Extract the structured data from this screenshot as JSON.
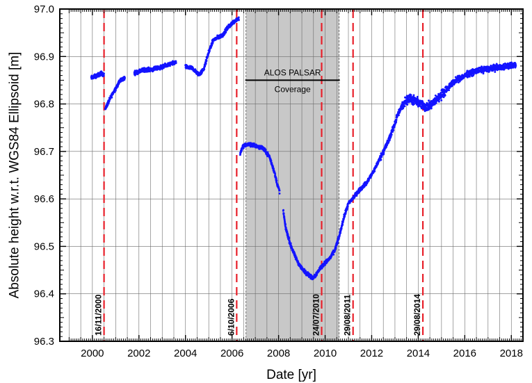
{
  "chart_data": {
    "type": "scatter",
    "title": "",
    "xlabel": "Date [yr]",
    "ylabel": "Absolute height w.r.t. WGS84 Ellipsoid [m]",
    "xlim": [
      1998.6,
      2018.5
    ],
    "ylim": [
      96.3,
      97.0
    ],
    "x_ticks": [
      2000,
      2002,
      2004,
      2006,
      2008,
      2010,
      2012,
      2014,
      2016,
      2018
    ],
    "y_ticks": [
      96.3,
      96.4,
      96.5,
      96.6,
      96.7,
      96.8,
      96.9,
      97.0
    ],
    "x_tick_labels": [
      "2000",
      "2002",
      "2004",
      "2006",
      "2008",
      "2010",
      "2012",
      "2014",
      "2016",
      "2018"
    ],
    "y_tick_labels": [
      "96.3",
      "96.4",
      "96.5",
      "96.6",
      "96.7",
      "96.8",
      "96.9",
      "97.0"
    ],
    "grid": true,
    "colors": {
      "series": "#1414ff",
      "event_lines": "#e8202a",
      "band": "#c8c8c8"
    },
    "series": [
      {
        "color": "#1414ff",
        "segments": [
          [
            [
              1999.95,
              96.855
            ],
            [
              2000.2,
              96.86
            ],
            [
              2000.4,
              96.865
            ],
            [
              2000.5,
              96.86
            ]
          ],
          [
            [
              2000.55,
              96.79
            ],
            [
              2000.65,
              96.8
            ],
            [
              2000.85,
              96.82
            ],
            [
              2001.2,
              96.85
            ],
            [
              2001.4,
              96.855
            ]
          ],
          [
            [
              2001.8,
              96.865
            ],
            [
              2002.2,
              96.872
            ],
            [
              2002.6,
              96.873
            ],
            [
              2003.0,
              96.878
            ],
            [
              2003.4,
              96.885
            ],
            [
              2003.6,
              96.888
            ]
          ],
          [
            [
              2004.0,
              96.878
            ],
            [
              2004.3,
              96.875
            ],
            [
              2004.5,
              96.865
            ],
            [
              2004.6,
              96.862
            ],
            [
              2004.8,
              96.875
            ],
            [
              2005.0,
              96.91
            ],
            [
              2005.2,
              96.935
            ],
            [
              2005.4,
              96.94
            ],
            [
              2005.6,
              96.945
            ],
            [
              2005.8,
              96.96
            ],
            [
              2006.0,
              96.97
            ],
            [
              2006.2,
              96.978
            ],
            [
              2006.3,
              96.98
            ]
          ],
          [
            [
              2006.35,
              96.695
            ],
            [
              2006.45,
              96.71
            ],
            [
              2006.7,
              96.715
            ],
            [
              2007.0,
              96.712
            ],
            [
              2007.3,
              96.708
            ],
            [
              2007.6,
              96.69
            ],
            [
              2007.8,
              96.66
            ],
            [
              2007.95,
              96.63
            ],
            [
              2008.05,
              96.615
            ]
          ],
          [
            [
              2008.2,
              96.575
            ],
            [
              2008.3,
              96.54
            ],
            [
              2008.5,
              96.505
            ],
            [
              2008.7,
              96.48
            ],
            [
              2008.9,
              96.46
            ],
            [
              2009.1,
              96.448
            ],
            [
              2009.3,
              96.44
            ],
            [
              2009.45,
              96.433
            ],
            [
              2009.6,
              96.44
            ],
            [
              2009.8,
              96.455
            ],
            [
              2010.0,
              96.465
            ],
            [
              2010.2,
              96.475
            ],
            [
              2010.4,
              96.49
            ],
            [
              2010.6,
              96.52
            ],
            [
              2010.8,
              96.56
            ],
            [
              2011.0,
              96.59
            ],
            [
              2011.2,
              96.602
            ]
          ],
          [
            [
              2011.2,
              96.602
            ],
            [
              2011.5,
              96.62
            ],
            [
              2011.8,
              96.635
            ],
            [
              2012.1,
              96.66
            ],
            [
              2012.4,
              96.69
            ],
            [
              2012.7,
              96.72
            ],
            [
              2012.9,
              96.745
            ],
            [
              2013.1,
              96.775
            ],
            [
              2013.3,
              96.795
            ],
            [
              2013.5,
              96.81
            ],
            [
              2013.7,
              96.81
            ],
            [
              2013.9,
              96.805
            ],
            [
              2014.1,
              96.8
            ],
            [
              2014.3,
              96.795
            ],
            [
              2014.5,
              96.795
            ],
            [
              2014.7,
              96.805
            ],
            [
              2014.9,
              96.815
            ],
            [
              2015.2,
              96.83
            ],
            [
              2015.5,
              96.845
            ],
            [
              2015.8,
              96.855
            ],
            [
              2016.1,
              96.862
            ],
            [
              2016.4,
              96.868
            ],
            [
              2016.7,
              96.872
            ],
            [
              2017.0,
              96.874
            ],
            [
              2017.3,
              96.876
            ],
            [
              2017.6,
              96.878
            ],
            [
              2017.9,
              96.88
            ],
            [
              2018.1,
              96.882
            ],
            [
              2018.2,
              96.883
            ]
          ]
        ]
      }
    ],
    "event_lines": [
      {
        "x": 2000.5,
        "label": "16/11/2000"
      },
      {
        "x": 2006.2,
        "label": "6/10/2006"
      },
      {
        "x": 2009.85,
        "label": "24/07/2010"
      },
      {
        "x": 2011.2,
        "label": "29/08/2011"
      },
      {
        "x": 2014.2,
        "label": "29/08/2014"
      }
    ],
    "coverage_band": {
      "x0": 2006.6,
      "x1": 2010.6,
      "label_top": "ALOS PALSAR",
      "label_bottom": "Coverage",
      "label_y": 96.85
    }
  }
}
